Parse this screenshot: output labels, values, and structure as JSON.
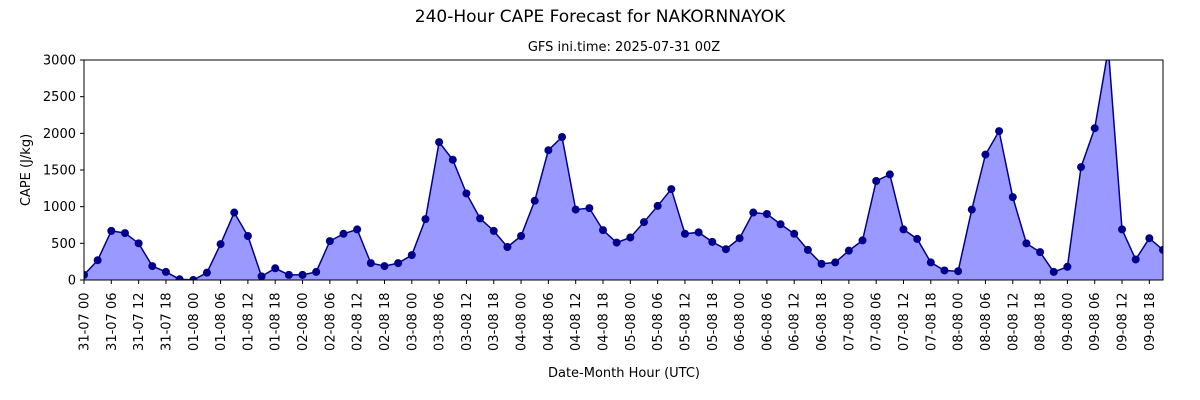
{
  "chart_data": {
    "type": "area",
    "title": "240-Hour CAPE Forecast for NAKORNNAYOK",
    "subtitle": "GFS ini.time: 2025-07-31 00Z",
    "x_label": "Date-Month Hour (UTC)",
    "y_label": "CAPE (J/kg)",
    "categories": [
      "31-07 00",
      null,
      "31-07 06",
      null,
      "31-07 12",
      null,
      "31-07 18",
      null,
      "01-08 00",
      null,
      "01-08 06",
      null,
      "01-08 12",
      null,
      "01-08 18",
      null,
      "02-08 00",
      null,
      "02-08 06",
      null,
      "02-08 12",
      null,
      "02-08 18",
      null,
      "03-08 00",
      null,
      "03-08 06",
      null,
      "03-08 12",
      null,
      "03-08 18",
      null,
      "04-08 00",
      null,
      "04-08 06",
      null,
      "04-08 12",
      null,
      "04-08 18",
      null,
      "05-08 00",
      null,
      "05-08 06",
      null,
      "05-08 12",
      null,
      "05-08 18",
      null,
      "06-08 00",
      null,
      "06-08 06",
      null,
      "06-08 12",
      null,
      "06-08 18",
      null,
      "07-08 00",
      null,
      "07-08 06",
      null,
      "07-08 12",
      null,
      "07-08 18",
      null,
      "08-08 00",
      null,
      "08-08 06",
      null,
      "08-08 12",
      null,
      "08-08 18",
      null,
      "09-08 00",
      null,
      "09-08 06",
      null,
      "09-08 12",
      null,
      "09-08 18",
      null
    ],
    "values": [
      70,
      270,
      670,
      640,
      500,
      190,
      110,
      10,
      0,
      100,
      490,
      920,
      600,
      50,
      160,
      70,
      70,
      110,
      530,
      630,
      690,
      230,
      190,
      230,
      340,
      830,
      1880,
      1640,
      1180,
      840,
      670,
      450,
      600,
      1080,
      1770,
      1950,
      960,
      980,
      680,
      510,
      580,
      790,
      1010,
      1240,
      630,
      650,
      520,
      420,
      570,
      920,
      900,
      760,
      630,
      410,
      220,
      240,
      400,
      540,
      1350,
      1440,
      690,
      560,
      240,
      130,
      120,
      960,
      1710,
      2030,
      1130,
      500,
      380,
      110,
      180,
      1540,
      2070,
      3150,
      690,
      280,
      570,
      410
    ],
    "color": "#00008b",
    "fill": "#9999ff",
    "ylim": [
      0,
      3000
    ],
    "yticks": [
      0,
      500,
      1000,
      1500,
      2000,
      2500,
      3000
    ]
  }
}
